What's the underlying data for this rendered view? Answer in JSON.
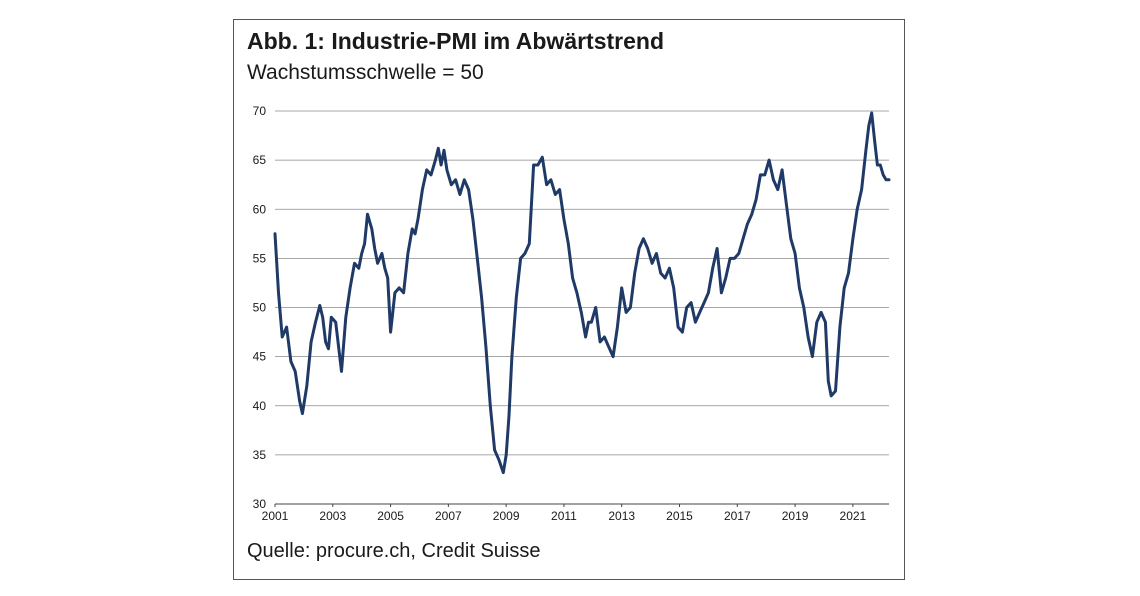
{
  "chart_data": {
    "type": "line",
    "title": "Abb. 1: Industrie-PMI im Abwärtstrend",
    "subtitle": "Wachstumsschwelle = 50",
    "source": "Quelle: procure.ch, Credit Suisse",
    "xlabel": "",
    "ylabel": "",
    "xlim": [
      2001,
      2022.25
    ],
    "ylim": [
      30,
      70
    ],
    "x_ticks": [
      "2001",
      "2003",
      "2005",
      "2007",
      "2009",
      "2011",
      "2013",
      "2015",
      "2017",
      "2019",
      "2021"
    ],
    "y_ticks": [
      "30",
      "35",
      "40",
      "45",
      "50",
      "55",
      "60",
      "65",
      "70"
    ],
    "grid": true,
    "line_color": "#1f3a66",
    "series": [
      {
        "name": "Industrie-PMI",
        "x": [
          2001.0,
          2001.12,
          2001.25,
          2001.4,
          2001.55,
          2001.7,
          2001.85,
          2001.95,
          2002.1,
          2002.25,
          2002.4,
          2002.55,
          2002.65,
          2002.75,
          2002.85,
          2002.95,
          2003.1,
          2003.2,
          2003.3,
          2003.45,
          2003.6,
          2003.75,
          2003.9,
          2004.0,
          2004.1,
          2004.2,
          2004.35,
          2004.45,
          2004.55,
          2004.7,
          2004.8,
          2004.9,
          2005.0,
          2005.15,
          2005.3,
          2005.45,
          2005.6,
          2005.75,
          2005.85,
          2005.95,
          2006.1,
          2006.25,
          2006.4,
          2006.55,
          2006.65,
          2006.75,
          2006.85,
          2006.95,
          2007.1,
          2007.25,
          2007.4,
          2007.55,
          2007.7,
          2007.85,
          2008.0,
          2008.15,
          2008.3,
          2008.45,
          2008.6,
          2008.75,
          2008.9,
          2009.0,
          2009.1,
          2009.2,
          2009.35,
          2009.5,
          2009.65,
          2009.8,
          2009.95,
          2010.1,
          2010.25,
          2010.4,
          2010.55,
          2010.7,
          2010.85,
          2011.0,
          2011.15,
          2011.3,
          2011.45,
          2011.6,
          2011.75,
          2011.85,
          2011.95,
          2012.1,
          2012.25,
          2012.4,
          2012.55,
          2012.7,
          2012.85,
          2013.0,
          2013.15,
          2013.3,
          2013.45,
          2013.6,
          2013.75,
          2013.9,
          2014.05,
          2014.2,
          2014.35,
          2014.5,
          2014.65,
          2014.8,
          2014.95,
          2015.1,
          2015.25,
          2015.4,
          2015.55,
          2015.7,
          2015.85,
          2016.0,
          2016.15,
          2016.3,
          2016.45,
          2016.6,
          2016.75,
          2016.9,
          2017.05,
          2017.2,
          2017.35,
          2017.5,
          2017.65,
          2017.8,
          2017.95,
          2018.1,
          2018.25,
          2018.4,
          2018.55,
          2018.7,
          2018.85,
          2019.0,
          2019.15,
          2019.3,
          2019.45,
          2019.6,
          2019.75,
          2019.9,
          2020.05,
          2020.15,
          2020.25,
          2020.4,
          2020.55,
          2020.7,
          2020.85,
          2021.0,
          2021.15,
          2021.3,
          2021.45,
          2021.55,
          2021.65,
          2021.75,
          2021.85,
          2021.95,
          2022.05,
          2022.15,
          2022.25
        ],
        "values": [
          57.5,
          51.5,
          47.0,
          48.0,
          44.5,
          43.5,
          40.5,
          39.2,
          42.0,
          46.5,
          48.5,
          50.2,
          49.0,
          46.5,
          45.8,
          49.0,
          48.5,
          46.0,
          43.5,
          49.0,
          52.0,
          54.5,
          54.0,
          55.5,
          56.5,
          59.5,
          58.0,
          56.0,
          54.5,
          55.5,
          54.0,
          53.0,
          47.5,
          51.5,
          52.0,
          51.5,
          55.5,
          58.0,
          57.5,
          59.0,
          62.0,
          64.0,
          63.5,
          65.0,
          66.2,
          64.5,
          66.0,
          64.0,
          62.5,
          63.0,
          61.5,
          63.0,
          62.0,
          59.0,
          55.0,
          51.0,
          46.0,
          40.0,
          35.5,
          34.5,
          33.2,
          35.0,
          39.0,
          45.0,
          51.0,
          55.0,
          55.5,
          56.5,
          64.5,
          64.5,
          65.3,
          62.5,
          63.0,
          61.5,
          62.0,
          59.0,
          56.5,
          53.0,
          51.5,
          49.5,
          47.0,
          48.5,
          48.5,
          50.0,
          46.5,
          47.0,
          46.0,
          45.0,
          48.0,
          52.0,
          49.5,
          50.0,
          53.5,
          56.0,
          57.0,
          56.0,
          54.5,
          55.5,
          53.5,
          53.0,
          54.0,
          52.0,
          48.0,
          47.5,
          50.0,
          50.5,
          48.5,
          49.5,
          50.5,
          51.5,
          54.0,
          56.0,
          51.5,
          53.0,
          55.0,
          55.0,
          55.5,
          57.0,
          58.5,
          59.5,
          61.0,
          63.5,
          63.5,
          65.0,
          63.0,
          62.0,
          64.0,
          60.5,
          57.0,
          55.5,
          52.0,
          50.0,
          47.0,
          45.0,
          48.5,
          49.5,
          48.5,
          42.5,
          41.0,
          41.5,
          48.0,
          52.0,
          53.5,
          57.0,
          60.0,
          62.0,
          66.0,
          68.5,
          69.8,
          67.0,
          64.5,
          64.5,
          63.5,
          63.0,
          63.0
        ]
      }
    ]
  }
}
